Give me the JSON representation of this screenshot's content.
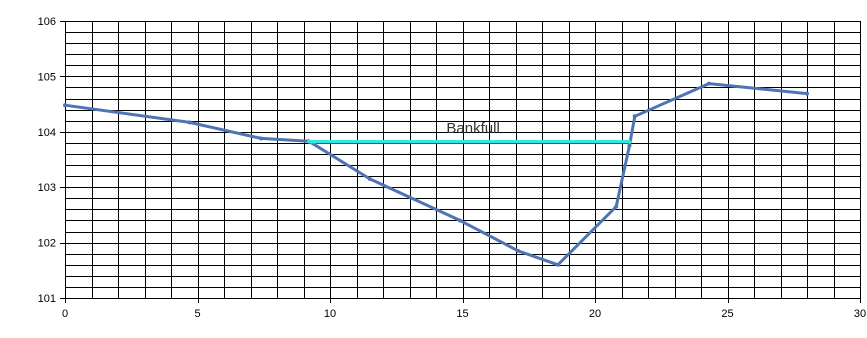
{
  "chart_data": {
    "type": "line",
    "title": "",
    "xlabel": "",
    "ylabel": "",
    "xlim": [
      0,
      30
    ],
    "ylim": [
      101,
      106
    ],
    "grid": true,
    "xticks": [
      0,
      5,
      10,
      15,
      20,
      25,
      30
    ],
    "yticks": [
      101,
      102,
      103,
      104,
      105,
      106
    ],
    "xtick_labels": [
      "0",
      "5",
      "10",
      "15",
      "20",
      "25",
      "30"
    ],
    "ytick_labels": [
      "101",
      "102",
      "103",
      "104",
      "105",
      "106"
    ],
    "series": [
      {
        "color": "#4f74b3",
        "x": [
          0,
          4.7,
          7.4,
          9.2,
          11.5,
          14.9,
          17.1,
          18.6,
          20.8,
          21.3,
          21.5,
          24.3,
          28.0
        ],
        "y": [
          104.48,
          104.17,
          103.88,
          103.83,
          103.15,
          102.4,
          101.85,
          101.6,
          102.65,
          103.75,
          104.28,
          104.87,
          104.69
        ]
      },
      {
        "color": "#33e6e0",
        "x": [
          9.2,
          21.3
        ],
        "y": [
          103.82,
          103.82
        ]
      }
    ],
    "annotations": [
      {
        "text": "Bankfull",
        "x": 15.4,
        "y": 103.98
      }
    ]
  }
}
